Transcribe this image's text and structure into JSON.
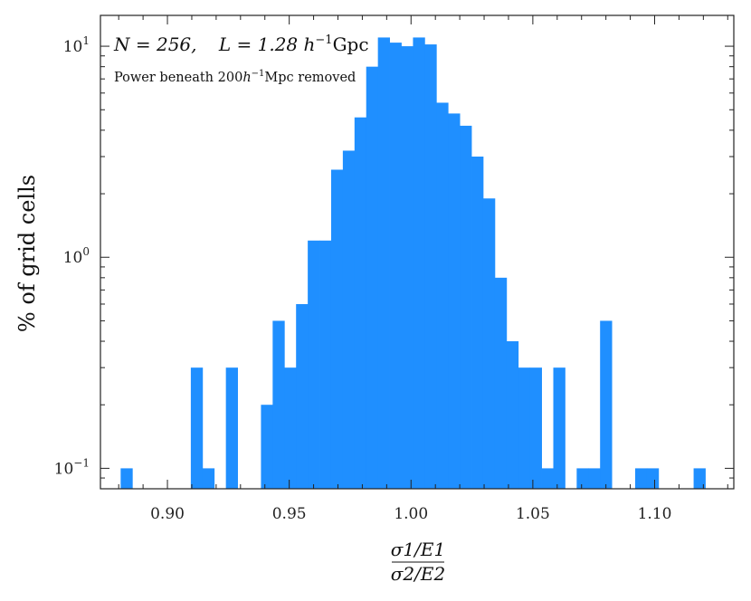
{
  "chart_data": {
    "type": "bar",
    "subtype": "histogram",
    "title": "",
    "xlabel_numerator": "σ1/E1",
    "xlabel_denominator": "σ2/E2",
    "ylabel": "% of grid cells",
    "yscale": "log",
    "xlim": [
      0.8725,
      1.1325
    ],
    "ylim": [
      0.08,
      14
    ],
    "bar_color": "#1f8fff",
    "bin_width": 0.0048,
    "x_ticks": [
      "0.90",
      "0.95",
      "1.00",
      "1.05",
      "1.10"
    ],
    "x_tick_values": [
      0.9,
      0.95,
      1.0,
      1.05,
      1.1
    ],
    "y_ticks": [
      {
        "value": 0.1,
        "mantissa": "10",
        "exp": "−1"
      },
      {
        "value": 1,
        "mantissa": "10",
        "exp": "0"
      },
      {
        "value": 10,
        "mantissa": "10",
        "exp": "1"
      }
    ],
    "annotations": {
      "line1_n": "N = 256,",
      "line1_l": "L = 1.28 h",
      "line1_exp": "−1",
      "line1_unit": "Gpc",
      "line2_prefix": "Power beneath 200",
      "line2_h": "h",
      "line2_exp": "−1",
      "line2_suffix": "Mpc removed"
    },
    "bins": [
      {
        "x": 0.8808,
        "value": 0.1
      },
      {
        "x": 0.9096,
        "value": 0.3
      },
      {
        "x": 0.9144,
        "value": 0.1
      },
      {
        "x": 0.924,
        "value": 0.3
      },
      {
        "x": 0.9384,
        "value": 0.2
      },
      {
        "x": 0.9432,
        "value": 0.5
      },
      {
        "x": 0.948,
        "value": 0.3
      },
      {
        "x": 0.9528,
        "value": 0.6
      },
      {
        "x": 0.9576,
        "value": 1.2
      },
      {
        "x": 0.9624,
        "value": 1.2
      },
      {
        "x": 0.9672,
        "value": 2.6
      },
      {
        "x": 0.972,
        "value": 3.2
      },
      {
        "x": 0.9768,
        "value": 4.6
      },
      {
        "x": 0.9816,
        "value": 8.0
      },
      {
        "x": 0.9864,
        "value": 11.0
      },
      {
        "x": 0.9912,
        "value": 10.4
      },
      {
        "x": 0.996,
        "value": 10.0
      },
      {
        "x": 1.0008,
        "value": 11.0
      },
      {
        "x": 1.0056,
        "value": 10.2
      },
      {
        "x": 1.0104,
        "value": 5.4
      },
      {
        "x": 1.0152,
        "value": 4.8
      },
      {
        "x": 1.02,
        "value": 4.2
      },
      {
        "x": 1.0248,
        "value": 3.0
      },
      {
        "x": 1.0296,
        "value": 1.9
      },
      {
        "x": 1.0344,
        "value": 0.8
      },
      {
        "x": 1.0392,
        "value": 0.4
      },
      {
        "x": 1.044,
        "value": 0.3
      },
      {
        "x": 1.0488,
        "value": 0.3
      },
      {
        "x": 1.0536,
        "value": 0.1
      },
      {
        "x": 1.0584,
        "value": 0.3
      },
      {
        "x": 1.068,
        "value": 0.1
      },
      {
        "x": 1.0728,
        "value": 0.1
      },
      {
        "x": 1.0776,
        "value": 0.5
      },
      {
        "x": 1.092,
        "value": 0.1
      },
      {
        "x": 1.0968,
        "value": 0.1
      },
      {
        "x": 1.116,
        "value": 0.1
      }
    ]
  }
}
